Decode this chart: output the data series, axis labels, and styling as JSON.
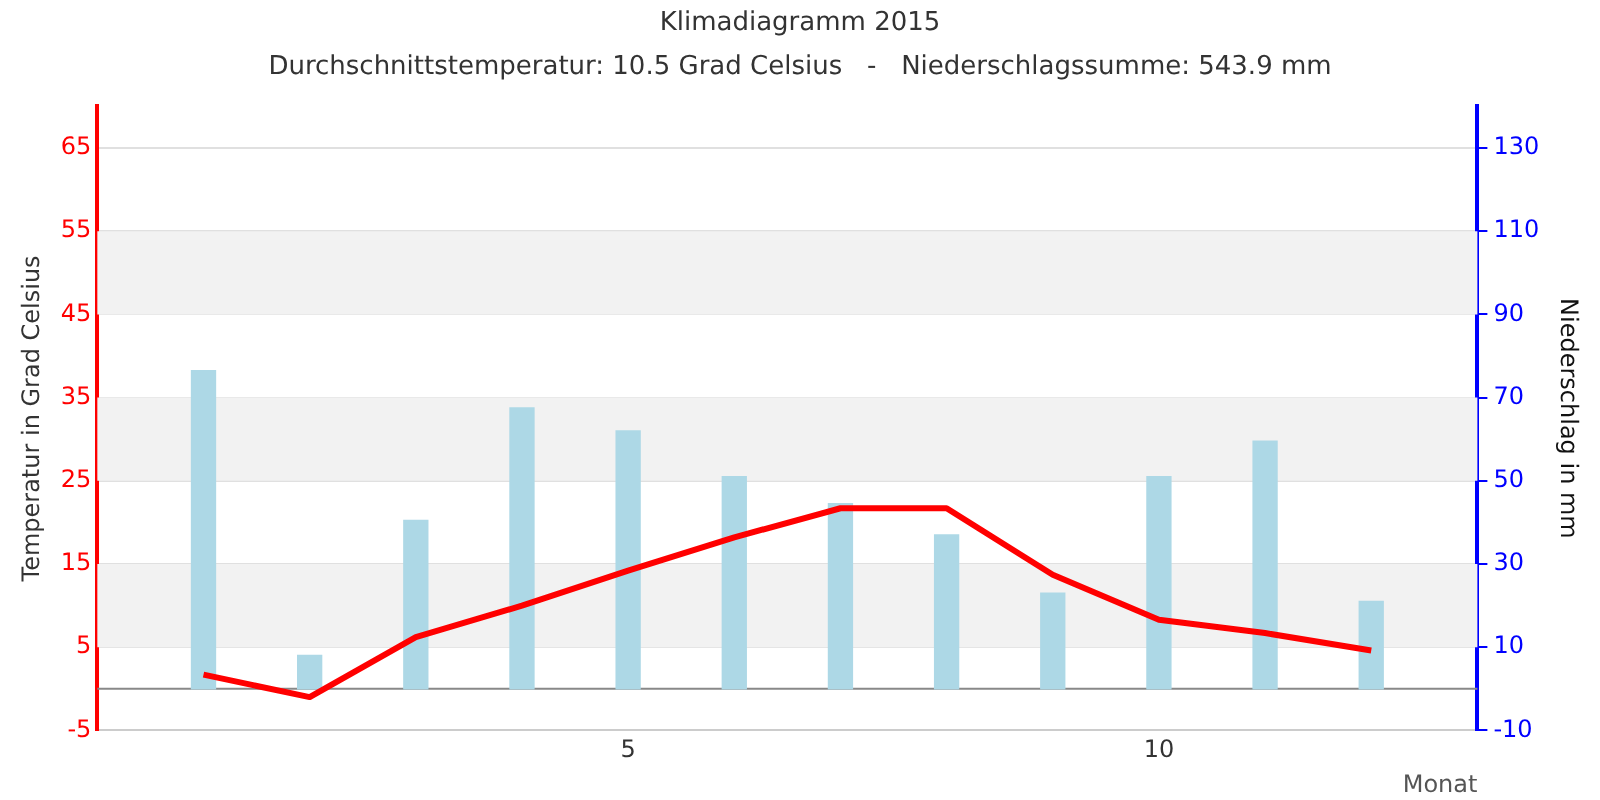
{
  "chart_data": {
    "type": "bar",
    "title": "Klimadiagramm 2015",
    "subtitle": "Durchschnittstemperatur: 10.5 Grad Celsius   -   Niederschlagssumme: 543.9 mm",
    "xlabel": "Monat",
    "ylabel": "Temperatur in Grad Celsius",
    "y2label": "Niederschlag in mm",
    "x": [
      1,
      2,
      3,
      4,
      5,
      6,
      7,
      8,
      9,
      10,
      11,
      12
    ],
    "series": [
      {
        "axis": "y2",
        "color": "#add8e6",
        "values": [
          76.5,
          8,
          40.5,
          67.5,
          62,
          51,
          44.5,
          37,
          23,
          51,
          59.5,
          21
        ]
      },
      {
        "type": "line",
        "axis": "y",
        "color": "#ff0000",
        "values": [
          1.7,
          -1.0,
          6.2,
          10,
          14.2,
          18.2,
          21.7,
          21.7,
          13.7,
          8.3,
          6.7,
          4.6
        ]
      }
    ],
    "xlim": [
      0,
      13
    ],
    "xticks": [
      5,
      10
    ],
    "ylim": [
      -5,
      70
    ],
    "yticks": [
      -5,
      5,
      15,
      25,
      35,
      45,
      55,
      65
    ],
    "y2lim": [
      -10,
      140
    ],
    "y2ticks": [
      -10,
      10,
      30,
      50,
      70,
      90,
      110,
      130
    ],
    "bands": [
      {
        "axis": "y",
        "from": 5,
        "to": 15,
        "color": "#f2f2f2"
      },
      {
        "axis": "y",
        "from": 25,
        "to": 35,
        "color": "#f2f2f2"
      },
      {
        "axis": "y",
        "from": 45,
        "to": 55,
        "color": "#f2f2f2"
      }
    ],
    "grid": "y",
    "legend": false,
    "marker": "none",
    "line_style": "solid"
  }
}
